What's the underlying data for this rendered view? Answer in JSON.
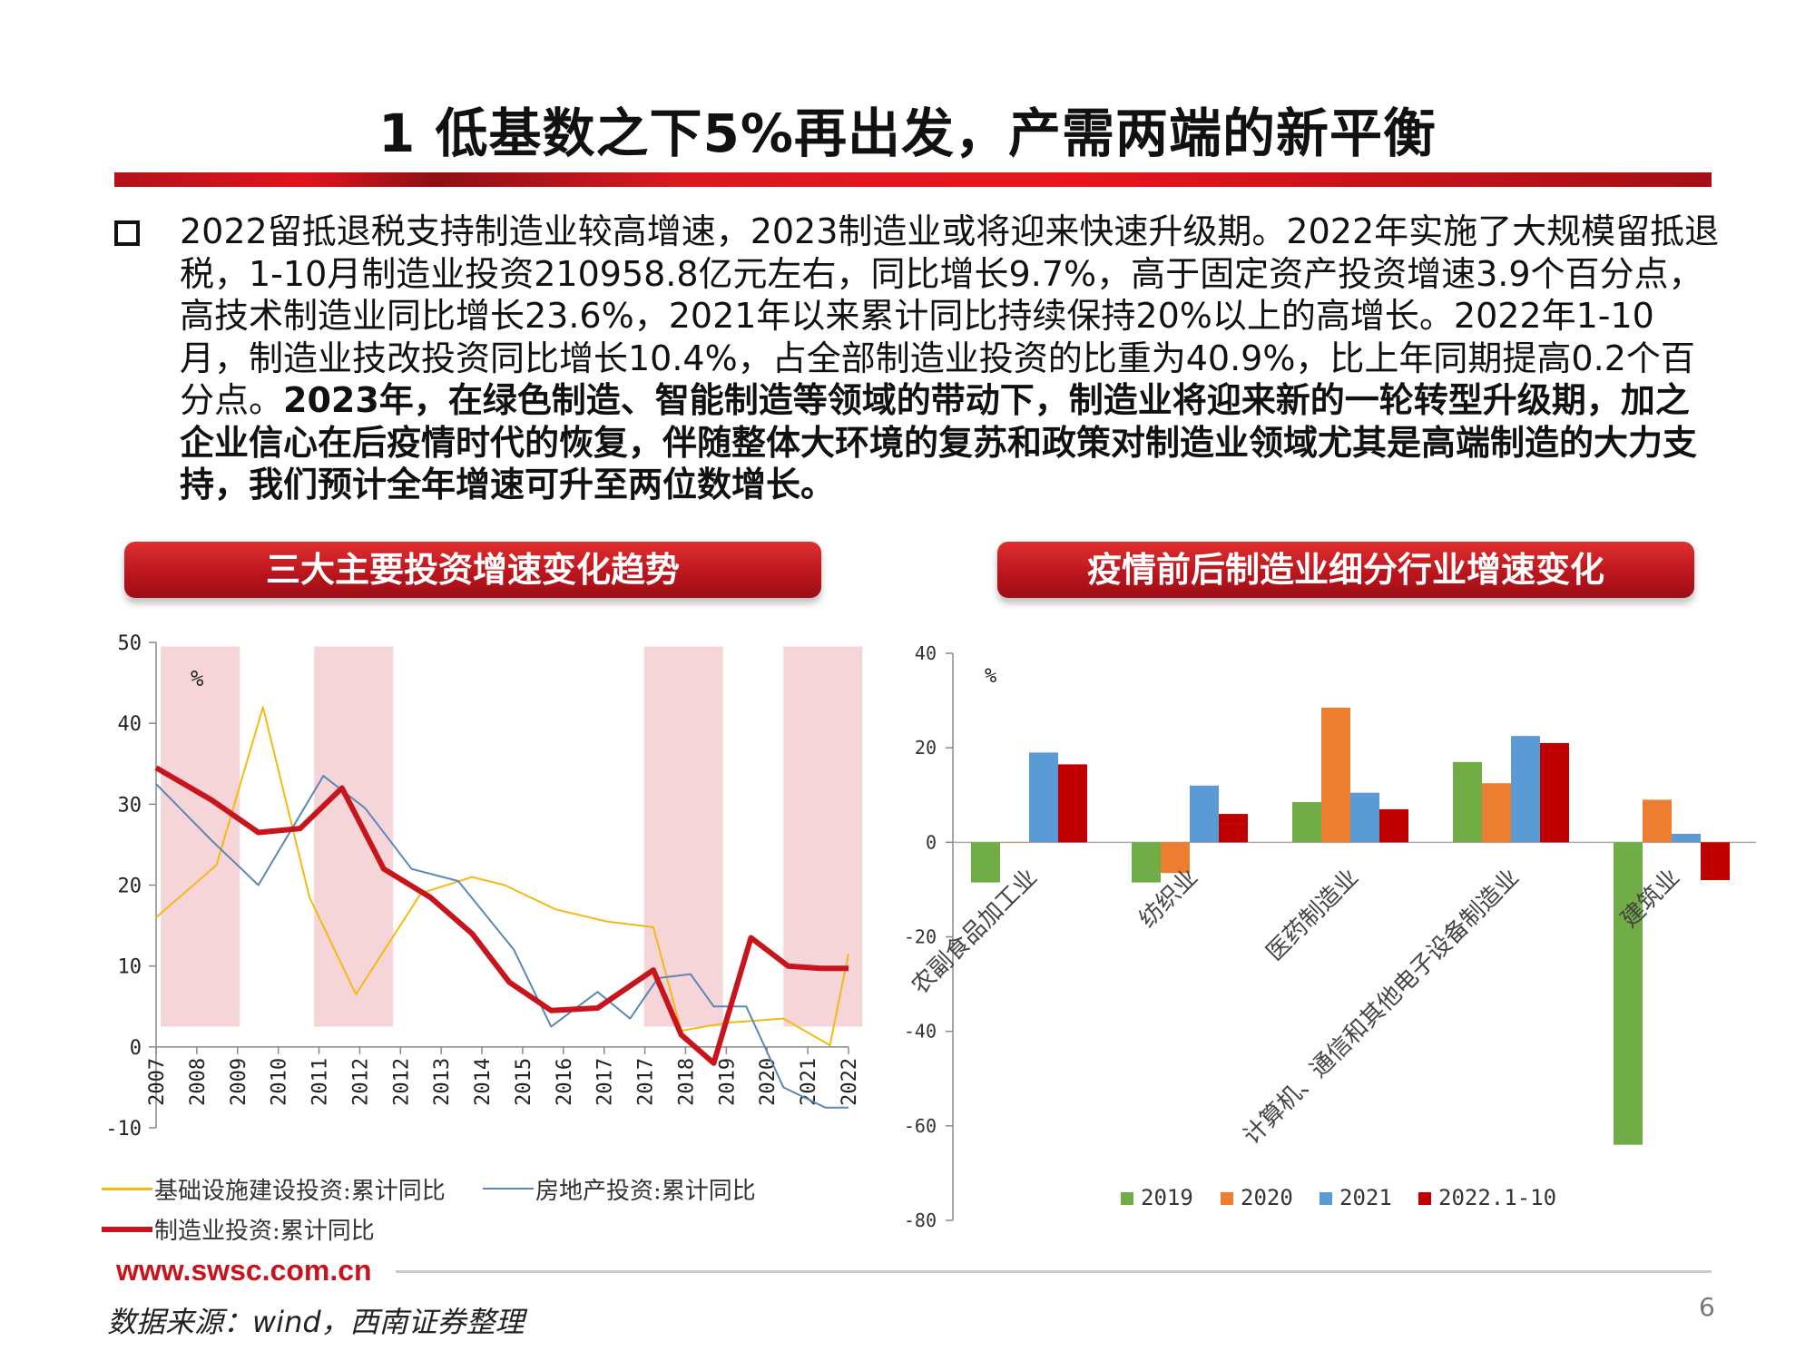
{
  "title": "1 低基数之下5%再出发，产需两端的新平衡",
  "paragraph": {
    "normal": "2022留抵退税支持制造业较高增速，2023制造业或将迎来快速升级期。2022年实施了大规模留抵退税，1-10月制造业投资210958.8亿元左右，同比增长9.7%，高于固定资产投资增速3.9个百分点，高技术制造业同比增长23.6%，2021年以来累计同比持续保持20%以上的高增长。2022年1-10月，制造业技改投资同比增长10.4%，占全部制造业投资的比重为40.9%，比上年同期提高0.2个百分点。",
    "bold": "2023年，在绿色制造、智能制造等领域的带动下，制造业将迎来新的一轮转型升级期，加之企业信心在后疫情时代的恢复，伴随整体大环境的复苏和政策对制造业领域尤其是高端制造的大力支持，我们预计全年增速可升至两位数增长。"
  },
  "left_banner": "三大主要投资增速变化趋势",
  "right_banner": "疫情前后制造业细分行业增速变化",
  "chart_data": [
    {
      "type": "line",
      "unit_label": "%",
      "ylim": [
        -10,
        50
      ],
      "yticks": [
        50,
        40,
        30,
        20,
        10,
        0,
        -10
      ],
      "xticks": [
        "2007",
        "2008",
        "2009",
        "2010",
        "2011",
        "2012",
        "2012",
        "2013",
        "2014",
        "2015",
        "2016",
        "2017",
        "2017",
        "2018",
        "2019",
        "2020",
        "2021",
        "2022"
      ],
      "shaded_bands": [
        [
          2007.1,
          2008.8
        ],
        [
          2010.4,
          2012.1
        ],
        [
          2017.5,
          2019.2
        ],
        [
          2020.5,
          2022.2
        ]
      ],
      "series": [
        {
          "name": "基础设施建设投资:累计同比",
          "color": "#f5b915",
          "x": [
            2007.0,
            2008.3,
            2009.3,
            2010.3,
            2011.3,
            2012.7,
            2013.8,
            2014.5,
            2015.6,
            2016.7,
            2017.7,
            2018.3,
            2019.3,
            2020.5,
            2021.5,
            2021.9
          ],
          "y": [
            16,
            22.5,
            42,
            18.5,
            6.5,
            19,
            21,
            20,
            17,
            15.5,
            14.8,
            2,
            3,
            3.5,
            0.2,
            11.5
          ]
        },
        {
          "name": "房地产投资:累计同比",
          "color": "#5b87b5",
          "x": [
            2007.0,
            2008.2,
            2009.2,
            2010.6,
            2011.5,
            2012.5,
            2013.5,
            2014.7,
            2015.5,
            2016.5,
            2017.2,
            2017.8,
            2018.5,
            2019.0,
            2019.7,
            2020.5,
            2021.4,
            2021.9
          ],
          "y": [
            32.5,
            25.5,
            20,
            33.5,
            29.5,
            22,
            20.5,
            12,
            2.5,
            6.8,
            3.5,
            8.5,
            9,
            5,
            5,
            -5,
            -7.5,
            -7.5
          ]
        },
        {
          "name": "制造业投资:累计同比",
          "color": "#c8141c",
          "x": [
            2007.0,
            2008.2,
            2009.2,
            2010.1,
            2011.0,
            2011.9,
            2012.9,
            2013.8,
            2014.6,
            2015.5,
            2016.5,
            2017.7,
            2018.3,
            2019.0,
            2019.8,
            2020.6,
            2021.3,
            2021.9
          ],
          "y": [
            34.5,
            30.5,
            26.5,
            27,
            32,
            22,
            18.5,
            14,
            8,
            4.5,
            4.8,
            9.5,
            1.5,
            -2,
            13.5,
            10,
            9.7,
            9.7
          ]
        }
      ],
      "legend_position": "bottom"
    },
    {
      "type": "bar",
      "unit_label": "%",
      "ylim": [
        -80,
        40
      ],
      "yticks": [
        40,
        20,
        0,
        -20,
        -40,
        -60,
        -80
      ],
      "categories": [
        "农副食品加工业",
        "纺织业",
        "医药制造业",
        "计算机、通信和其他电子设备制造业",
        "建筑业"
      ],
      "series": [
        {
          "name": "2019",
          "color": "#70ad47",
          "values": [
            -8.5,
            -8.5,
            8.5,
            17,
            -64
          ]
        },
        {
          "name": "2020",
          "color": "#ed7d31",
          "values": [
            0,
            -6.5,
            28.5,
            12.5,
            9
          ]
        },
        {
          "name": "2021",
          "color": "#5b9bd5",
          "values": [
            19,
            12,
            10.5,
            22.5,
            1.8
          ]
        },
        {
          "name": "2022.1-10",
          "color": "#c00000",
          "values": [
            16.5,
            6,
            7,
            21,
            -8
          ]
        }
      ],
      "legend_position": "bottom"
    }
  ],
  "footer": {
    "url": "www.swsc.com.cn",
    "source": "数据来源：wind，西南证券整理",
    "page": "6"
  }
}
